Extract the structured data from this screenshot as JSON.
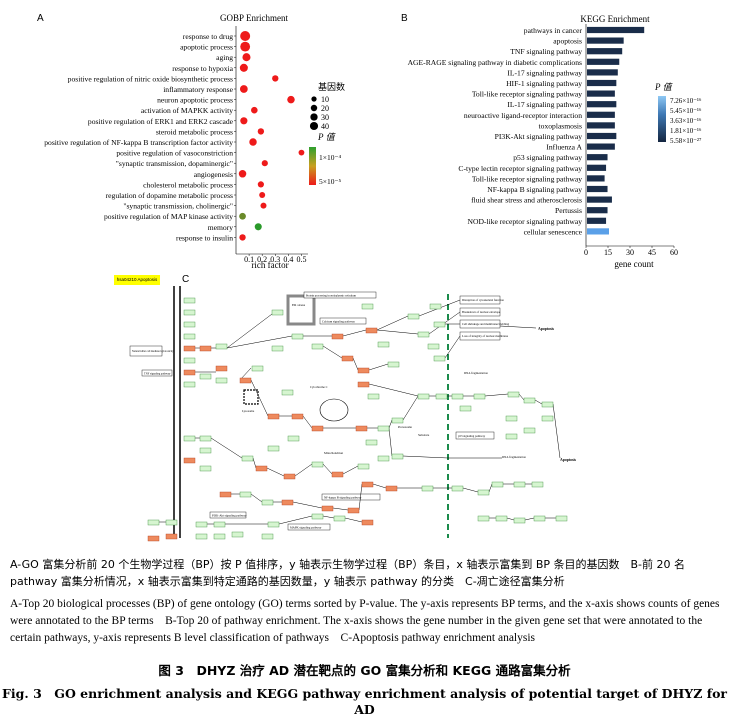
{
  "panelA": {
    "letter": "A",
    "title": "GOBP Enrichment",
    "xlabel": "rich factor",
    "size_legend_title": "基因数",
    "size_legend": [
      "10",
      "20",
      "30",
      "40"
    ],
    "color_legend_title": "P 值",
    "color_legend": [
      "1×10⁻⁴",
      "5×10⁻⁵"
    ]
  },
  "panelB": {
    "letter": "B",
    "title": "KEGG Enrichment",
    "xlabel": "gene count",
    "legend_title": "P 值",
    "legend": [
      "7.26×10⁻¹⁶",
      "5.45×10⁻¹⁶",
      "3.63×10⁻¹⁶",
      "1.81×10⁻¹⁶",
      "5.58×10⁻²⁷"
    ]
  },
  "panelC": {
    "letter": "C",
    "tag": "hsa04210 Apoptosis",
    "labels": {
      "er": "ER stress",
      "protein": "Protein processing in endoplasmic reticulum",
      "calcium": "Calcium signaling pathway",
      "apoptosis_out1": "Apoptosis",
      "apoptosis_out2": "Apoptosis",
      "dna": "DNA fragmentation",
      "dna2": "DNA fragmentation",
      "pi3k": "PI3K-Akt signaling pathway",
      "nfkb": "NF-kappa B signaling pathway",
      "mapk": "MAPK signaling pathway",
      "p53": "p53 signaling pathway",
      "mito": "Mitochondrion",
      "tnf": "TNF signaling pathway",
      "lysosome": "Lysosome",
      "cytc": "Cytochrome C",
      "proteasome": "Proteasome",
      "substrate": "Substrate",
      "natural": "Natural killer cell mediated cytotoxicity",
      "disruption": "Disruption of cytoskeletal function",
      "breakdown": "Breakdown of nuclear envelope",
      "celldetach": "Cell shrinkage and membrane blebbing",
      "loss": "Loss of integrity of nuclear membrane"
    }
  },
  "caption": {
    "cn": "A-GO 富集分析前 20 个生物学过程（BP）按 P 值排序，y 轴表示生物学过程（BP）条目，x 轴表示富集到 BP 条目的基因数　B-前 20 名 pathway 富集分析情况，x 轴表示富集到特定通路的基因数量，y 轴表示 pathway 的分类　C-凋亡途径富集分析",
    "en": "A-Top 20 biological processes (BP) of gene ontology (GO) terms sorted by P-value. The y-axis represents BP terms, and the x-axis shows counts of genes were annotated to the BP terms　B-Top 20 of pathway enrichment. The x-axis shows the gene number in the given gene set that were annotated to the certain pathways, y-axis represents B level classification of pathways　C-Apoptosis pathway enrichment analysis",
    "title_cn": "图 3　DHYZ 治疗 AD 潜在靶点的 GO 富集分析和 KEGG 通路富集分析",
    "title_en": "Fig. 3　GO enrichment analysis and KEGG pathway enrichment analysis of potential target of DHYZ for AD"
  },
  "chart_data": [
    {
      "type": "scatter",
      "title": "GOBP Enrichment",
      "xlabel": "rich factor",
      "ylabel": "",
      "xlim": [
        0.0,
        0.55
      ],
      "xticks": [
        "0.1",
        "0.2",
        "0.3",
        "0.4",
        "0.5"
      ],
      "categories": [
        "response to drug",
        "apoptotic process",
        "aging",
        "response to hypoxia",
        "positive regulation of nitric oxide biosynthetic process",
        "inflammatory response",
        "neuron apoptotic process",
        "activation of MAPKK activity",
        "positive regulation of ERK1 and ERK2 cascade",
        "steroid metabolic process",
        "positive regulation of NF-kappa B transcription factor activity",
        "positive regulation of vasoconstriction",
        "\"synaptic transmission, dopaminergic\"",
        "angiogenesis",
        "cholesterol metabolic process",
        "regulation of dopamine metabolic process",
        "\"synaptic transmission, cholinergic\"",
        "positive regulation of MAP kinase activity",
        "memory",
        "response to insulin"
      ],
      "rich_factor": [
        0.07,
        0.07,
        0.08,
        0.06,
        0.3,
        0.06,
        0.42,
        0.14,
        0.06,
        0.19,
        0.13,
        0.5,
        0.22,
        0.05,
        0.19,
        0.2,
        0.21,
        0.05,
        0.17,
        0.05
      ],
      "gene_count": [
        40,
        38,
        22,
        22,
        11,
        20,
        18,
        12,
        16,
        11,
        18,
        8,
        10,
        18,
        10,
        9,
        9,
        13,
        15,
        11
      ],
      "p_color": [
        "#ee1a1a",
        "#ee1a1a",
        "#ee1a1a",
        "#ee1a1a",
        "#ee1a1a",
        "#ee1a1a",
        "#ee1a1a",
        "#ee1a1a",
        "#ee1a1a",
        "#ee1a1a",
        "#ee1a1a",
        "#ee1a1a",
        "#ee1a1a",
        "#ee1a1a",
        "#ee1a1a",
        "#ee1a1a",
        "#ee1a1a",
        "#6a8a2a",
        "#2a9a2a",
        "#ee1a1a"
      ]
    },
    {
      "type": "bar",
      "orientation": "horizontal",
      "title": "KEGG Enrichment",
      "xlabel": "gene count",
      "ylabel": "",
      "xlim": [
        0,
        60
      ],
      "xticks": [
        "0",
        "15",
        "30",
        "45",
        "60"
      ],
      "categories": [
        "pathways in cancer",
        "apoptosis",
        "TNF signaling pathway",
        "AGE-RAGE signaling pathway in diabetic complications",
        "IL-17 signaling pathway",
        "HIF-1 signaling pathway",
        "Toll-like receptor signaling pathway",
        "IL-17 signaling pathway",
        "neuroactive ligand-receptor interaction",
        "toxoplasmosis",
        "PI3K-Akt signaling pathway",
        "Influenza A",
        "p53 signaling pathway",
        "C-type lectin receptor signaling pathway",
        "Toll-like receptor signaling pathway",
        "NF-kappa B signaling pathway",
        "fluid shear stress and atherosclerosis",
        "Pertussis",
        "NOD-like receptor signaling pathway",
        "cellular senescence"
      ],
      "values": [
        39,
        25,
        24,
        22,
        21,
        20,
        19,
        20,
        19,
        19,
        20,
        19,
        14,
        13,
        12,
        14,
        17,
        14,
        13,
        15
      ],
      "colors": [
        "#1a2d4a",
        "#1a2d4a",
        "#1a2d4a",
        "#1a2d4a",
        "#1a2d4a",
        "#1a2d4a",
        "#1a2d4a",
        "#1a2d4a",
        "#1a2d4a",
        "#1a2d4a",
        "#1a2d4a",
        "#1a2d4a",
        "#1a2d4a",
        "#1a2d4a",
        "#1a2d4a",
        "#1a2d4a",
        "#1a2d4a",
        "#1a2d4a",
        "#1a2d4a",
        "#5aa0e8"
      ]
    }
  ]
}
